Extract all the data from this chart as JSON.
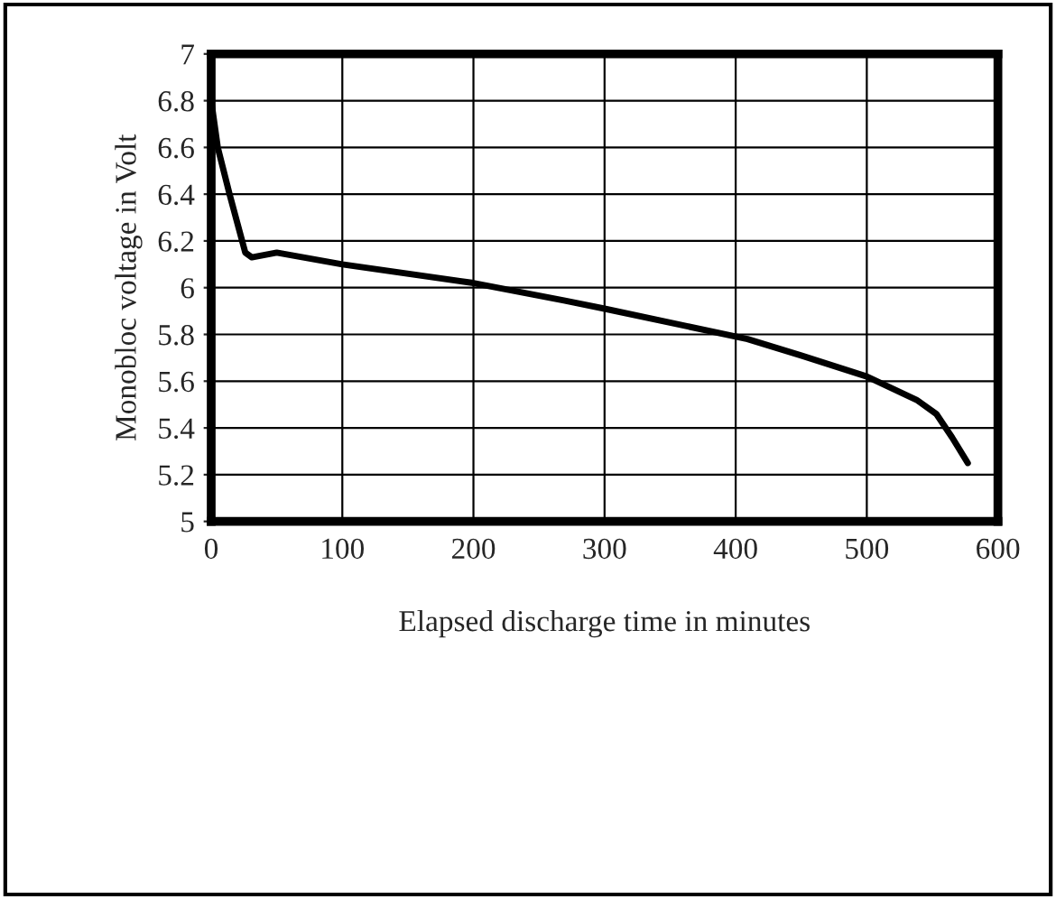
{
  "chart_data": {
    "type": "line",
    "xlabel": "Elapsed discharge time in minutes",
    "ylabel": "Monobloc voltage in Volt",
    "x": [
      0,
      5,
      14,
      26,
      31,
      50,
      100,
      200,
      269,
      300,
      409,
      450,
      500,
      538,
      553,
      565,
      577
    ],
    "series": [
      {
        "color": "#000000",
        "values": [
          6.8,
          6.6,
          6.4,
          6.15,
          6.13,
          6.15,
          6.1,
          6.02,
          5.945,
          5.91,
          5.78,
          5.71,
          5.62,
          5.52,
          5.46,
          5.36,
          5.25
        ]
      }
    ],
    "xlim": [
      0,
      600
    ],
    "xticks": [
      0,
      100,
      200,
      300,
      400,
      500,
      600
    ],
    "ylim": [
      5,
      7
    ],
    "yticks": [
      5,
      5.2,
      5.4,
      5.6,
      5.8,
      6,
      6.2,
      6.4,
      6.6,
      6.8,
      7
    ],
    "grid": true,
    "marker": "none",
    "line_style": "solid"
  }
}
